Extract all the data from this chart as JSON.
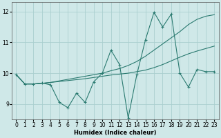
{
  "xlabel": "Humidex (Indice chaleur)",
  "bg": "#cfe8e8",
  "grid_color": "#aacfcf",
  "lc": "#2a7a70",
  "xlim": [
    -0.5,
    23.5
  ],
  "ylim": [
    8.5,
    12.3
  ],
  "xticks": [
    0,
    1,
    2,
    3,
    4,
    5,
    6,
    7,
    8,
    9,
    10,
    11,
    12,
    13,
    14,
    15,
    16,
    17,
    18,
    19,
    20,
    21,
    22,
    23
  ],
  "yticks": [
    9,
    10,
    11,
    12
  ],
  "line1_y": [
    9.95,
    9.65,
    9.65,
    9.68,
    9.62,
    9.05,
    8.88,
    9.35,
    9.05,
    9.72,
    10.0,
    10.75,
    10.28,
    8.55,
    9.95,
    11.08,
    11.98,
    11.5,
    11.92,
    10.0,
    9.55,
    10.12,
    10.05,
    10.05
  ],
  "line2_y": [
    9.95,
    9.65,
    9.65,
    9.67,
    9.7,
    9.73,
    9.76,
    9.79,
    9.82,
    9.86,
    9.9,
    9.94,
    9.97,
    10.0,
    10.05,
    10.1,
    10.18,
    10.28,
    10.4,
    10.52,
    10.63,
    10.72,
    10.8,
    10.88
  ],
  "line3_y": [
    9.95,
    9.65,
    9.65,
    9.67,
    9.7,
    9.75,
    9.8,
    9.85,
    9.9,
    9.95,
    10.0,
    10.08,
    10.15,
    10.25,
    10.38,
    10.55,
    10.75,
    10.95,
    11.15,
    11.35,
    11.58,
    11.75,
    11.85,
    11.9
  ]
}
